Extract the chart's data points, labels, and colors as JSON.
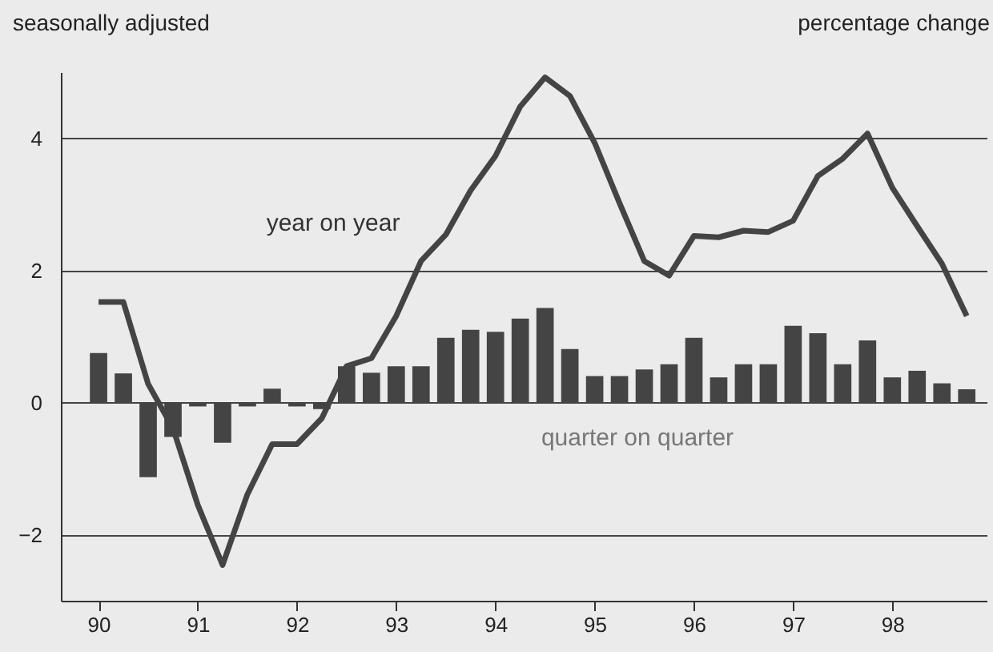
{
  "chart_data": {
    "type": "bar",
    "annotations": [
      "seasonally adjusted",
      "percentage change"
    ],
    "x": [
      90,
      90.25,
      90.5,
      90.75,
      91,
      91.25,
      91.5,
      91.75,
      92,
      92.25,
      92.5,
      92.75,
      93,
      93.25,
      93.5,
      93.75,
      94,
      94.25,
      94.5,
      94.75,
      95,
      95.25,
      95.5,
      95.75,
      96,
      96.25,
      96.5,
      96.75,
      97,
      97.25,
      97.5,
      97.75,
      98,
      98.25,
      98.5,
      98.75
    ],
    "series": [
      {
        "name": "quarter on quarter",
        "color": "#444444",
        "values": [
          0.75,
          0.44,
          -1.13,
          -0.52,
          -0.06,
          -0.61,
          -0.06,
          0.21,
          -0.06,
          -0.1,
          0.55,
          0.45,
          0.55,
          0.55,
          0.98,
          1.1,
          1.07,
          1.27,
          1.43,
          0.81,
          0.4,
          0.4,
          0.5,
          0.58,
          0.98,
          0.38,
          0.58,
          0.58,
          1.16,
          1.05,
          0.58,
          0.94,
          0.38,
          0.48,
          0.29,
          0.2
        ]
      },
      {
        "name": "year on year",
        "type": "line",
        "color": "#444444",
        "line_style": "solid",
        "values": [
          1.52,
          1.52,
          0.28,
          -0.39,
          -1.55,
          -2.46,
          -1.39,
          -0.63,
          -0.63,
          -0.24,
          0.55,
          0.67,
          1.31,
          2.14,
          2.54,
          3.21,
          3.73,
          4.48,
          4.92,
          4.64,
          3.93,
          3.02,
          2.14,
          1.92,
          2.52,
          2.5,
          2.6,
          2.58,
          2.75,
          3.43,
          3.69,
          4.07,
          3.25,
          2.67,
          2.1,
          1.31
        ]
      }
    ],
    "xlim": [
      89.62,
      98.95
    ],
    "xticks": [
      90,
      91,
      92,
      93,
      94,
      95,
      96,
      97,
      98
    ],
    "ylim": [
      -3,
      5
    ],
    "yticks": [
      -2,
      0,
      2,
      4
    ],
    "grid": "y"
  }
}
